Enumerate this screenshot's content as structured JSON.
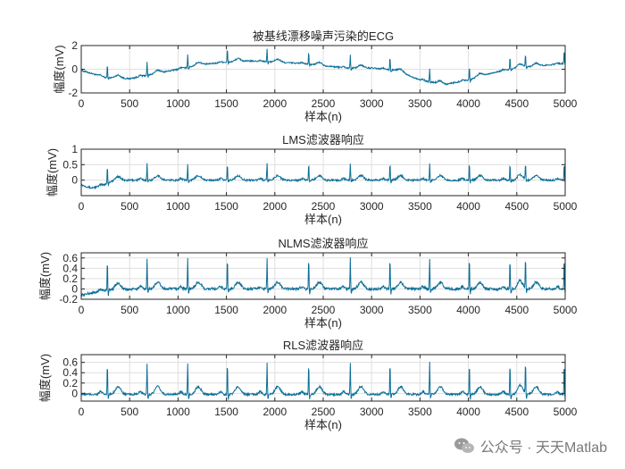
{
  "chart_data": [
    {
      "type": "line",
      "title": "被基线漂移噪声污染的ECG",
      "xlabel": "样本(n)",
      "ylabel": "幅度(mV)",
      "xlim": [
        0,
        5000
      ],
      "ylim": [
        -2,
        2
      ],
      "xticks": [
        0,
        500,
        1000,
        1500,
        2000,
        2500,
        3000,
        3500,
        4000,
        4500,
        5000
      ],
      "yticks": [
        -2,
        0,
        2
      ],
      "grid": true,
      "color": "#0b6e97",
      "baseline_x": [
        0,
        250,
        500,
        750,
        1000,
        1250,
        1500,
        1750,
        2000,
        2250,
        2500,
        2750,
        3000,
        3250,
        3500,
        3750,
        4000,
        4250,
        4500,
        4750,
        5000
      ],
      "baseline_y": [
        -0.1,
        -0.7,
        -0.8,
        -0.4,
        0.0,
        0.4,
        0.6,
        0.7,
        0.6,
        0.5,
        0.3,
        0.1,
        0.1,
        -0.1,
        -0.9,
        -1.3,
        -0.9,
        -0.3,
        0.1,
        0.3,
        0.5
      ],
      "beat_peaks": [
        270,
        680,
        1100,
        1510,
        1920,
        2350,
        2780,
        3190,
        3600,
        4010,
        4430,
        4590,
        4990
      ],
      "r_amplitude": 1.1,
      "t_amplitude": 0.25,
      "noise": 0.06
    },
    {
      "type": "line",
      "title": "LMS滤波器响应",
      "xlabel": "样本(n)",
      "ylabel": "幅度(mV)",
      "xlim": [
        0,
        5000
      ],
      "ylim": [
        -0.5,
        1
      ],
      "xticks": [
        0,
        500,
        1000,
        1500,
        2000,
        2500,
        3000,
        3500,
        4000,
        4500,
        5000
      ],
      "yticks": [
        0,
        0.5,
        1
      ],
      "grid": true,
      "color": "#0b6e97",
      "baseline_x": [
        0,
        100,
        200,
        300,
        500,
        1000,
        5000
      ],
      "baseline_y": [
        -0.15,
        -0.25,
        -0.2,
        -0.05,
        0.0,
        0.0,
        0.0
      ],
      "beat_peaks": [
        270,
        680,
        1100,
        1510,
        1920,
        2350,
        2780,
        3190,
        3600,
        4010,
        4430,
        4590,
        4990
      ],
      "r_amplitude": 0.55,
      "t_amplitude": 0.15,
      "noise": 0.03
    },
    {
      "type": "line",
      "title": "NLMS滤波器响应",
      "xlabel": "样本(n)",
      "ylabel": "幅度(mV)",
      "xlim": [
        0,
        5000
      ],
      "ylim": [
        -0.2,
        0.7
      ],
      "xticks": [
        0,
        500,
        1000,
        1500,
        2000,
        2500,
        3000,
        3500,
        4000,
        4500,
        5000
      ],
      "yticks": [
        -0.2,
        0,
        0.2,
        0.4,
        0.6
      ],
      "grid": true,
      "color": "#0b6e97",
      "baseline_x": [
        0,
        100,
        300,
        600,
        5000
      ],
      "baseline_y": [
        -0.12,
        -0.08,
        -0.02,
        0.0,
        0.0
      ],
      "beat_peaks": [
        270,
        680,
        1100,
        1510,
        1920,
        2350,
        2780,
        3190,
        3600,
        4010,
        4430,
        4590,
        4990
      ],
      "r_amplitude": 0.6,
      "t_amplitude": 0.13,
      "noise": 0.025
    },
    {
      "type": "line",
      "title": "RLS滤波器响应",
      "xlabel": "样本(n)",
      "ylabel": "幅度(mV)",
      "xlim": [
        0,
        5000
      ],
      "ylim": [
        -0.15,
        0.75
      ],
      "xticks": [
        0,
        500,
        1000,
        1500,
        2000,
        2500,
        3000,
        3500,
        4000,
        4500,
        5000
      ],
      "yticks": [
        0,
        0.2,
        0.4,
        0.6
      ],
      "grid": true,
      "color": "#0b6e97",
      "baseline_x": [
        0,
        5000
      ],
      "baseline_y": [
        -0.02,
        -0.02
      ],
      "beat_peaks": [
        270,
        680,
        1100,
        1510,
        1920,
        2350,
        2780,
        3190,
        3600,
        4010,
        4430,
        4590,
        4990
      ],
      "r_amplitude": 0.62,
      "t_amplitude": 0.15,
      "noise": 0.02
    }
  ],
  "watermark": {
    "text": "公众号 · 天天Matlab",
    "icon": "wechat-icon"
  }
}
